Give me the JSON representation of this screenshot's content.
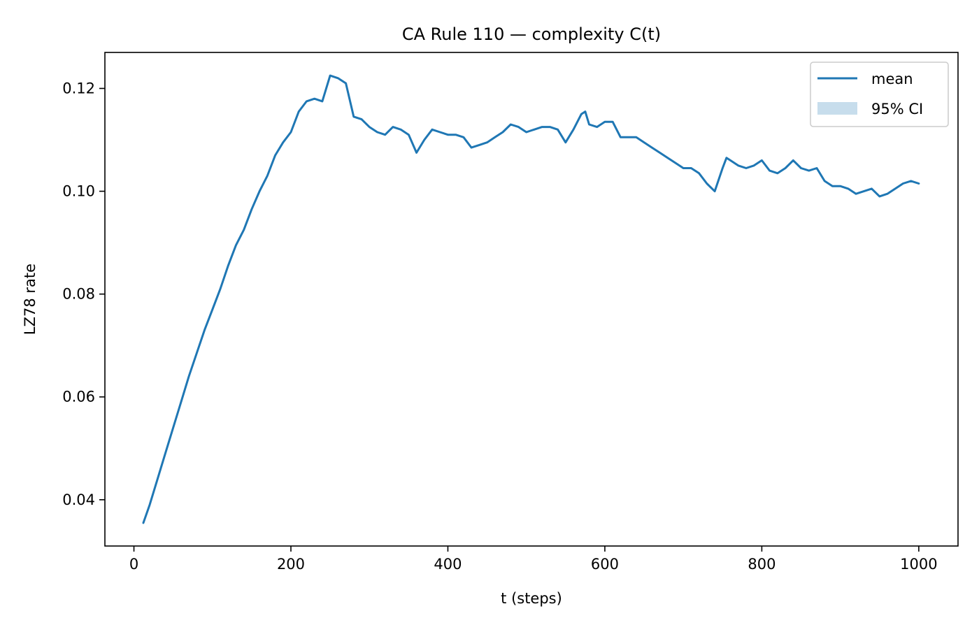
{
  "chart_data": {
    "type": "line",
    "title": "CA Rule 110 — complexity C(t)",
    "xlabel": "t (steps)",
    "ylabel": "LZ78 rate",
    "xlim": [
      -37,
      1050
    ],
    "ylim": [
      0.031,
      0.127
    ],
    "xticks": [
      0,
      200,
      400,
      600,
      800,
      1000
    ],
    "xtick_labels": [
      "0",
      "200",
      "400",
      "600",
      "800",
      "1000"
    ],
    "yticks": [
      0.04,
      0.06,
      0.08,
      0.1,
      0.12
    ],
    "ytick_labels": [
      "0.04",
      "0.06",
      "0.08",
      "0.10",
      "0.12"
    ],
    "grid": false,
    "legend_position": "top-right",
    "series": [
      {
        "name": "mean",
        "color": "#1f77b4",
        "style": "line",
        "x": [
          12,
          20,
          30,
          40,
          50,
          60,
          70,
          80,
          90,
          100,
          110,
          120,
          130,
          140,
          150,
          160,
          170,
          180,
          190,
          200,
          210,
          220,
          230,
          240,
          250,
          260,
          270,
          280,
          290,
          300,
          310,
          320,
          330,
          340,
          350,
          360,
          370,
          380,
          390,
          400,
          410,
          420,
          430,
          440,
          450,
          460,
          470,
          480,
          490,
          500,
          510,
          520,
          530,
          540,
          550,
          560,
          570,
          575,
          580,
          590,
          600,
          610,
          620,
          630,
          640,
          650,
          660,
          670,
          680,
          690,
          700,
          710,
          720,
          730,
          740,
          750,
          755,
          760,
          770,
          780,
          790,
          800,
          810,
          820,
          830,
          840,
          850,
          860,
          870,
          880,
          890,
          900,
          910,
          920,
          930,
          940,
          950,
          960,
          970,
          980,
          990,
          1000
        ],
        "values": [
          0.0355,
          0.039,
          0.044,
          0.049,
          0.054,
          0.059,
          0.064,
          0.0685,
          0.073,
          0.077,
          0.081,
          0.0855,
          0.0895,
          0.0925,
          0.0965,
          0.1,
          0.103,
          0.107,
          0.1095,
          0.1115,
          0.1155,
          0.1175,
          0.118,
          0.1175,
          0.1225,
          0.122,
          0.121,
          0.1145,
          0.114,
          0.1125,
          0.1115,
          0.111,
          0.1125,
          0.112,
          0.111,
          0.1075,
          0.11,
          0.112,
          0.1115,
          0.111,
          0.111,
          0.1105,
          0.1085,
          0.109,
          0.1095,
          0.1105,
          0.1115,
          0.113,
          0.1125,
          0.1115,
          0.112,
          0.1125,
          0.1125,
          0.112,
          0.1095,
          0.112,
          0.115,
          0.1155,
          0.113,
          0.1125,
          0.1135,
          0.1135,
          0.1105,
          0.1105,
          0.1105,
          0.1095,
          0.1085,
          0.1075,
          0.1065,
          0.1055,
          0.1045,
          0.1045,
          0.1035,
          0.1015,
          0.1,
          0.1045,
          0.1065,
          0.106,
          0.105,
          0.1045,
          0.105,
          0.106,
          0.104,
          0.1035,
          0.1045,
          0.106,
          0.1045,
          0.104,
          0.1045,
          0.102,
          0.101,
          0.101,
          0.1005,
          0.0995,
          0.1,
          0.1005,
          0.099,
          0.0995,
          0.1005,
          0.1015,
          0.102,
          0.1015
        ]
      },
      {
        "name": "95% CI",
        "color": "#1f77b4",
        "style": "band"
      }
    ]
  }
}
